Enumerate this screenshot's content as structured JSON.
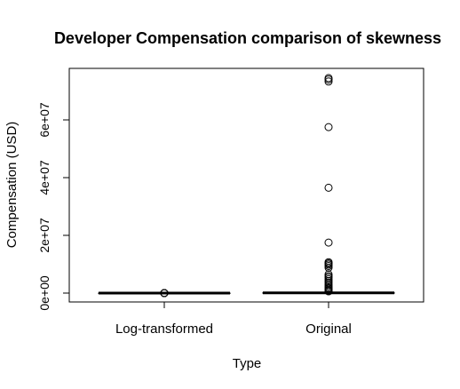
{
  "chart_data": {
    "type": "box",
    "title": "Developer Compensation comparison of skewness",
    "xlabel": "Type",
    "ylabel": "Compensation (USD)",
    "categories": [
      "Log-transformed",
      "Original"
    ],
    "y_ticks": [
      0,
      20000000,
      40000000,
      60000000
    ],
    "y_tick_labels": [
      "0e+00",
      "2e+07",
      "4e+07",
      "6e+07"
    ],
    "ylim": [
      -3000000,
      77000000
    ],
    "boxes": [
      {
        "name": "Log-transformed",
        "q1": 10.5,
        "median": 11.0,
        "q3": 11.5,
        "whisker_low": 9.0,
        "whisker_high": 13.0,
        "outliers": [
          15,
          14,
          13.8,
          5,
          4,
          3,
          2
        ]
      },
      {
        "name": "Original",
        "q1": 30000,
        "median": 70000,
        "q3": 120000,
        "whisker_low": 0,
        "whisker_high": 250000,
        "outliers": [
          74500000,
          74000000,
          73300000,
          57500000,
          36500000,
          17500000,
          10700000,
          10300000,
          9900000,
          9400000,
          8800000,
          6500000,
          5900000,
          5400000,
          4800000,
          4200000,
          3600000,
          3000000,
          2500000,
          2000000,
          1600000,
          1200000,
          900000,
          600000
        ]
      }
    ],
    "grid": false,
    "legend": "none"
  }
}
